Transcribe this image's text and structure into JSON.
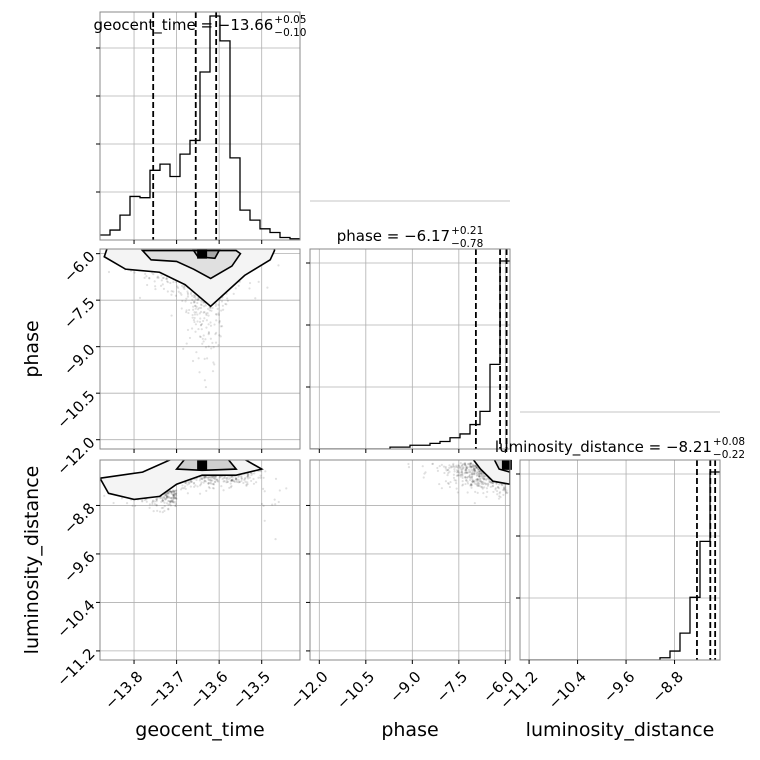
{
  "chart_data": {
    "type": "corner",
    "parameters": [
      "geocent_time",
      "phase",
      "luminosity_distance"
    ],
    "axis_labels": {
      "geocent_time": "geocent_time",
      "phase": "phase",
      "luminosity_distance": "luminosity_distance"
    },
    "ranges": {
      "geocent_time": [
        -13.88,
        -13.41
      ],
      "phase": [
        -12.3,
        -5.85
      ],
      "luminosity_distance": [
        -11.35,
        -8.05
      ]
    },
    "ticks": {
      "geocent_time": [
        -13.8,
        -13.7,
        -13.6,
        -13.5
      ],
      "phase": [
        -12.0,
        -10.5,
        -9.0,
        -7.5,
        -6.0
      ],
      "luminosity_distance": [
        -11.2,
        -10.4,
        -9.6,
        -8.8
      ]
    },
    "tick_labels": {
      "geocent_time": [
        "−13.8",
        "−13.7",
        "−13.6",
        "−13.5"
      ],
      "phase": [
        "−12.0",
        "−10.5",
        "−9.0",
        "−7.5",
        "−6.0"
      ],
      "luminosity_distance": [
        "−11.2",
        "−10.4",
        "−9.6",
        "−8.8"
      ]
    },
    "titles": [
      {
        "name": "geocent_time",
        "text": "geocent_time = −13.66",
        "sup": "+0.05",
        "sub": "−0.10"
      },
      {
        "name": "phase",
        "text": "phase = −6.17",
        "sup": "+0.21",
        "sub": "−0.78"
      },
      {
        "name": "luminosity_distance",
        "text": "luminosity_distance = −8.21",
        "sup": "+0.08",
        "sub": "−0.22"
      }
    ],
    "quantiles": {
      "geocent_time": [
        -13.755,
        -13.655,
        -13.607
      ],
      "phase": [
        -6.95,
        -6.17,
        -5.96
      ],
      "luminosity_distance": [
        -8.43,
        -8.21,
        -8.13
      ]
    },
    "histograms": {
      "geocent_time": {
        "edges": [
          -13.88,
          -13.8565,
          -13.833,
          -13.8095,
          -13.786,
          -13.7625,
          -13.739,
          -13.7155,
          -13.692,
          -13.6685,
          -13.645,
          -13.6215,
          -13.598,
          -13.5745,
          -13.551,
          -13.5275,
          -13.504,
          -13.4805,
          -13.457,
          -13.4335,
          -13.41
        ],
        "counts": [
          4,
          8,
          20,
          35,
          34,
          56,
          61,
          51,
          69,
          80,
          135,
          180,
          160,
          66,
          24,
          16,
          9,
          6,
          2,
          1
        ]
      },
      "phase": {
        "edges": [
          -12.3,
          -11.9775,
          -11.655,
          -11.3325,
          -11.01,
          -10.6875,
          -10.365,
          -10.0425,
          -9.72,
          -9.3975,
          -9.075,
          -8.7525,
          -8.43,
          -8.1075,
          -7.785,
          -7.4625,
          -7.14,
          -6.8175,
          -6.495,
          -6.1725,
          -5.85
        ],
        "counts": [
          0,
          0,
          0,
          0,
          0,
          0,
          0,
          0,
          1,
          1,
          2,
          2,
          3,
          4,
          6,
          8,
          13,
          20,
          45,
          100
        ]
      },
      "luminosity_distance": {
        "edges": [
          -11.35,
          -11.185,
          -11.02,
          -10.855,
          -10.69,
          -10.525,
          -10.36,
          -10.195,
          -10.03,
          -9.865,
          -9.7,
          -9.535,
          -9.37,
          -9.205,
          -9.04,
          -8.875,
          -8.71,
          -8.545,
          -8.38,
          -8.215,
          -8.05
        ],
        "counts": [
          0,
          0,
          0,
          0,
          0,
          0,
          0,
          0,
          0,
          0,
          0,
          0,
          0,
          0,
          1,
          4,
          12,
          28,
          53,
          84
        ]
      }
    },
    "peaks": [
      {
        "x": "geocent_time",
        "y": "phase",
        "px": -13.64,
        "py": -6.0
      },
      {
        "x": "geocent_time",
        "y": "luminosity_distance",
        "px": -13.64,
        "py": -8.13
      },
      {
        "x": "phase",
        "y": "luminosity_distance",
        "px": -5.95,
        "py": -8.13
      }
    ],
    "grid": true,
    "legend": "none"
  }
}
